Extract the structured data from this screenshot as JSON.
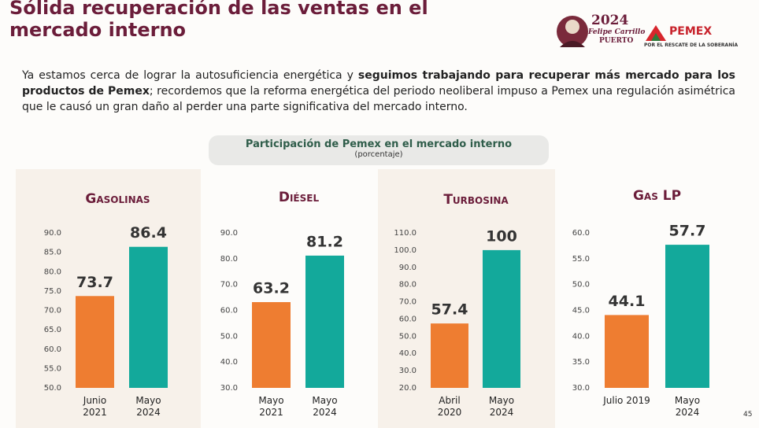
{
  "title": "Sólida recuperación de las ventas en el mercado interno",
  "logos": {
    "year": "2024",
    "name": "Felipe Carrillo",
    "surname": "PUERTO",
    "pemex": "PEMEX",
    "pemex_slogan": "POR EL RESCATE DE LA SOBERANÍA"
  },
  "paragraph": [
    {
      "text": "Ya estamos cerca de lograr la autosuficiencia energética y ",
      "bold": false
    },
    {
      "text": "seguimos trabajando para recuperar más mercado para los productos de Pemex",
      "bold": true
    },
    {
      "text": "; recordemos que la reforma energética del periodo neoliberal impuso a Pemex una regulación asimétrica que le causó un gran daño al perder una parte significativa del mercado interno.",
      "bold": false
    }
  ],
  "charts_header": {
    "title": "Participación de Pemex en el mercado interno",
    "subtitle": "(porcentaje)"
  },
  "page_number": "45",
  "chart_data": [
    {
      "type": "bar",
      "title": "Gasolinas",
      "categories": [
        "Junio 2021",
        "Mayo 2024"
      ],
      "values": [
        73.7,
        86.4
      ],
      "colors": [
        "#ee7d31",
        "#13a99b"
      ],
      "ylim": [
        50,
        90
      ],
      "yticks": [
        {
          "value": 50,
          "label": "50.0"
        },
        {
          "value": 55,
          "label": "55.0"
        },
        {
          "value": 60,
          "label": "60.0"
        },
        {
          "value": 65,
          "label": "65.0"
        },
        {
          "value": 70,
          "label": "70.0"
        },
        {
          "value": 75,
          "label": "75.0"
        },
        {
          "value": 80,
          "label": "80.0"
        },
        {
          "value": 85,
          "label": "85.0"
        },
        {
          "value": 90,
          "label": "90.0"
        }
      ]
    },
    {
      "type": "bar",
      "title": "Diésel",
      "categories": [
        "Mayo 2021",
        "Mayo 2024"
      ],
      "values": [
        63.2,
        81.2
      ],
      "colors": [
        "#ee7d31",
        "#13a99b"
      ],
      "ylim": [
        30,
        90
      ],
      "yticks": [
        {
          "value": 30,
          "label": "30.0"
        },
        {
          "value": 40,
          "label": "40.0"
        },
        {
          "value": 50,
          "label": "50.0"
        },
        {
          "value": 60,
          "label": "60.0"
        },
        {
          "value": 70,
          "label": "70.0"
        },
        {
          "value": 80,
          "label": "80.0"
        },
        {
          "value": 90,
          "label": "90.0"
        }
      ]
    },
    {
      "type": "bar",
      "title": "Turbosina",
      "categories": [
        "Abril 2020",
        "Mayo 2024"
      ],
      "values": [
        57.4,
        100
      ],
      "colors": [
        "#ee7d31",
        "#13a99b"
      ],
      "ylim": [
        20,
        110
      ],
      "yticks": [
        {
          "value": 20,
          "label": "20.0"
        },
        {
          "value": 30,
          "label": "30.0"
        },
        {
          "value": 40,
          "label": "40.0"
        },
        {
          "value": 50,
          "label": "50.0"
        },
        {
          "value": 60,
          "label": "60.0"
        },
        {
          "value": 70,
          "label": "70.0"
        },
        {
          "value": 80,
          "label": "80.0"
        },
        {
          "value": 90,
          "label": "90.0"
        },
        {
          "value": 100,
          "label": "100.0"
        },
        {
          "value": 110,
          "label": "110.0"
        }
      ]
    },
    {
      "type": "bar",
      "title": "Gas LP",
      "categories": [
        "Julio 2019",
        "Mayo 2024"
      ],
      "values": [
        44.1,
        57.7
      ],
      "colors": [
        "#ee7d31",
        "#13a99b"
      ],
      "ylim": [
        30,
        60
      ],
      "yticks": [
        {
          "value": 30,
          "label": "30.0"
        },
        {
          "value": 35,
          "label": "35.0"
        },
        {
          "value": 40,
          "label": "40.0"
        },
        {
          "value": 45,
          "label": "45.0"
        },
        {
          "value": 50,
          "label": "50.0"
        },
        {
          "value": 55,
          "label": "55.0"
        },
        {
          "value": 60,
          "label": "60.0"
        }
      ]
    }
  ]
}
